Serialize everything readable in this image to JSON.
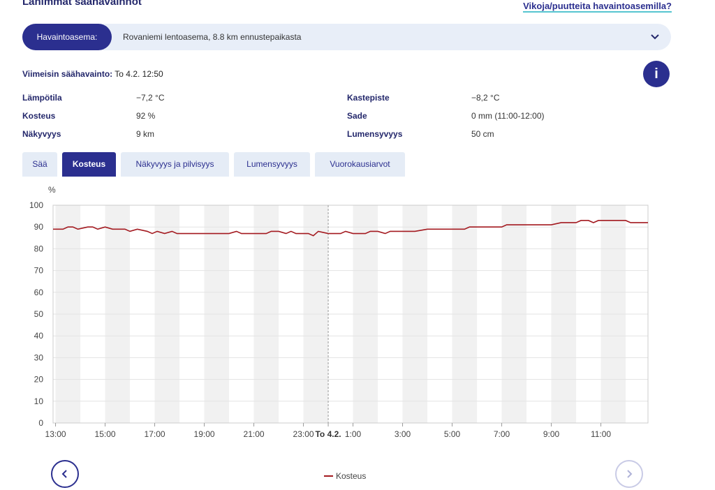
{
  "header": {
    "title": "Lähimmät säähavainnot",
    "link": "Vikoja/puutteita havaintoasemilla?"
  },
  "station": {
    "label": "Havaintoasema:",
    "value": "Rovaniemi lentoasema, 8.8 km ennustepaikasta"
  },
  "latest": {
    "label": "Viimeisin säähavainto:",
    "value": "To 4.2. 12:50"
  },
  "info_button": "i",
  "observations": [
    {
      "label": "Lämpötila",
      "value": "−7,2 °C"
    },
    {
      "label": "Kastepiste",
      "value": "−8,2 °C"
    },
    {
      "label": "Kosteus",
      "value": "92 %"
    },
    {
      "label": "Sade",
      "value": "0 mm (11:00-12:00)"
    },
    {
      "label": "Näkyvyys",
      "value": "9 km"
    },
    {
      "label": "Lumensyvyys",
      "value": "50 cm"
    }
  ],
  "tabs": {
    "items": [
      "Sää",
      "Kosteus",
      "Näkyvyys ja pilvisyys",
      "Lumensyvyys",
      "Vuorokausiarvot"
    ],
    "active": 1
  },
  "chart_data": {
    "type": "line",
    "y_unit": "%",
    "x": [
      12.9,
      13.3,
      13.5,
      13.7,
      13.9,
      14.3,
      14.5,
      14.7,
      15.0,
      15.3,
      15.8,
      16.0,
      16.3,
      16.7,
      16.9,
      17.1,
      17.4,
      17.7,
      17.9,
      19.0,
      20.0,
      20.3,
      20.5,
      21.0,
      21.5,
      21.7,
      22.0,
      22.3,
      22.5,
      22.7,
      23.0,
      23.2,
      23.4,
      23.6,
      24.0,
      24.5,
      24.7,
      25.0,
      25.5,
      25.7,
      26.0,
      26.3,
      26.5,
      27.0,
      27.5,
      28.0,
      29.0,
      29.5,
      29.7,
      30.0,
      31.0,
      31.2,
      32.0,
      33.0,
      33.4,
      34.0,
      34.2,
      34.5,
      34.7,
      34.9,
      36.0,
      36.2,
      36.9
    ],
    "series": [
      {
        "name": "Kosteus",
        "color": "#a3191f",
        "values": [
          89,
          89,
          90,
          90,
          89,
          90,
          90,
          89,
          90,
          89,
          89,
          88,
          89,
          88,
          87,
          88,
          87,
          88,
          87,
          87,
          87,
          88,
          87,
          87,
          87,
          88,
          88,
          87,
          88,
          87,
          87,
          87,
          86,
          88,
          87,
          87,
          88,
          87,
          87,
          88,
          88,
          87,
          88,
          88,
          88,
          89,
          89,
          89,
          90,
          90,
          90,
          91,
          91,
          91,
          92,
          92,
          93,
          93,
          92,
          93,
          93,
          92,
          92
        ]
      }
    ],
    "xlim": [
      12.9,
      36.9
    ],
    "xticks": [
      {
        "value": 13,
        "label": "13:00"
      },
      {
        "value": 15,
        "label": "15:00"
      },
      {
        "value": 17,
        "label": "17:00"
      },
      {
        "value": 19,
        "label": "19:00"
      },
      {
        "value": 21,
        "label": "21:00"
      },
      {
        "value": 23,
        "label": "23:00"
      },
      {
        "value": 24,
        "label": "To 4.2."
      },
      {
        "value": 25,
        "label": "1:00"
      },
      {
        "value": 27,
        "label": "3:00"
      },
      {
        "value": 29,
        "label": "5:00"
      },
      {
        "value": 31,
        "label": "7:00"
      },
      {
        "value": 33,
        "label": "9:00"
      },
      {
        "value": 35,
        "label": "11:00"
      }
    ],
    "ylim": [
      0,
      100
    ],
    "yticks": [
      0,
      10,
      20,
      30,
      40,
      50,
      60,
      70,
      80,
      90,
      100
    ],
    "grid": true
  }
}
